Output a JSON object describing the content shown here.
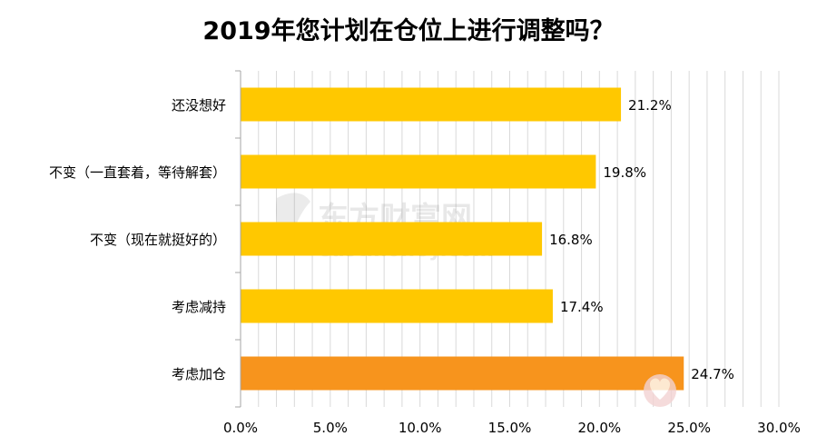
{
  "chart_data": {
    "type": "bar",
    "orientation": "horizontal",
    "title": "2019年您计划在仓位上进行调整吗？",
    "categories": [
      "还没想好",
      "不变（一直套着，等待解套）",
      "不变（现在就挺好的）",
      "考虑减持",
      "考虑加仓"
    ],
    "values": [
      21.2,
      19.8,
      16.8,
      17.4,
      24.7
    ],
    "data_labels": [
      "21.2%",
      "19.8%",
      "16.8%",
      "17.4%",
      "24.7%"
    ],
    "xlim": [
      0,
      30
    ],
    "x_ticks": [
      0,
      5,
      10,
      15,
      20,
      25,
      30
    ],
    "x_tick_labels": [
      "0.0%",
      "5.0%",
      "10.0%",
      "15.0%",
      "20.0%",
      "25.0%",
      "30.0%"
    ],
    "grid": true,
    "bar_colors": [
      "#FFC800",
      "#FFC800",
      "#FFC800",
      "#FFC800",
      "#F7941D"
    ]
  },
  "watermark": {
    "cn_text": "东方财富网",
    "en_text": "eastmoney.com"
  }
}
